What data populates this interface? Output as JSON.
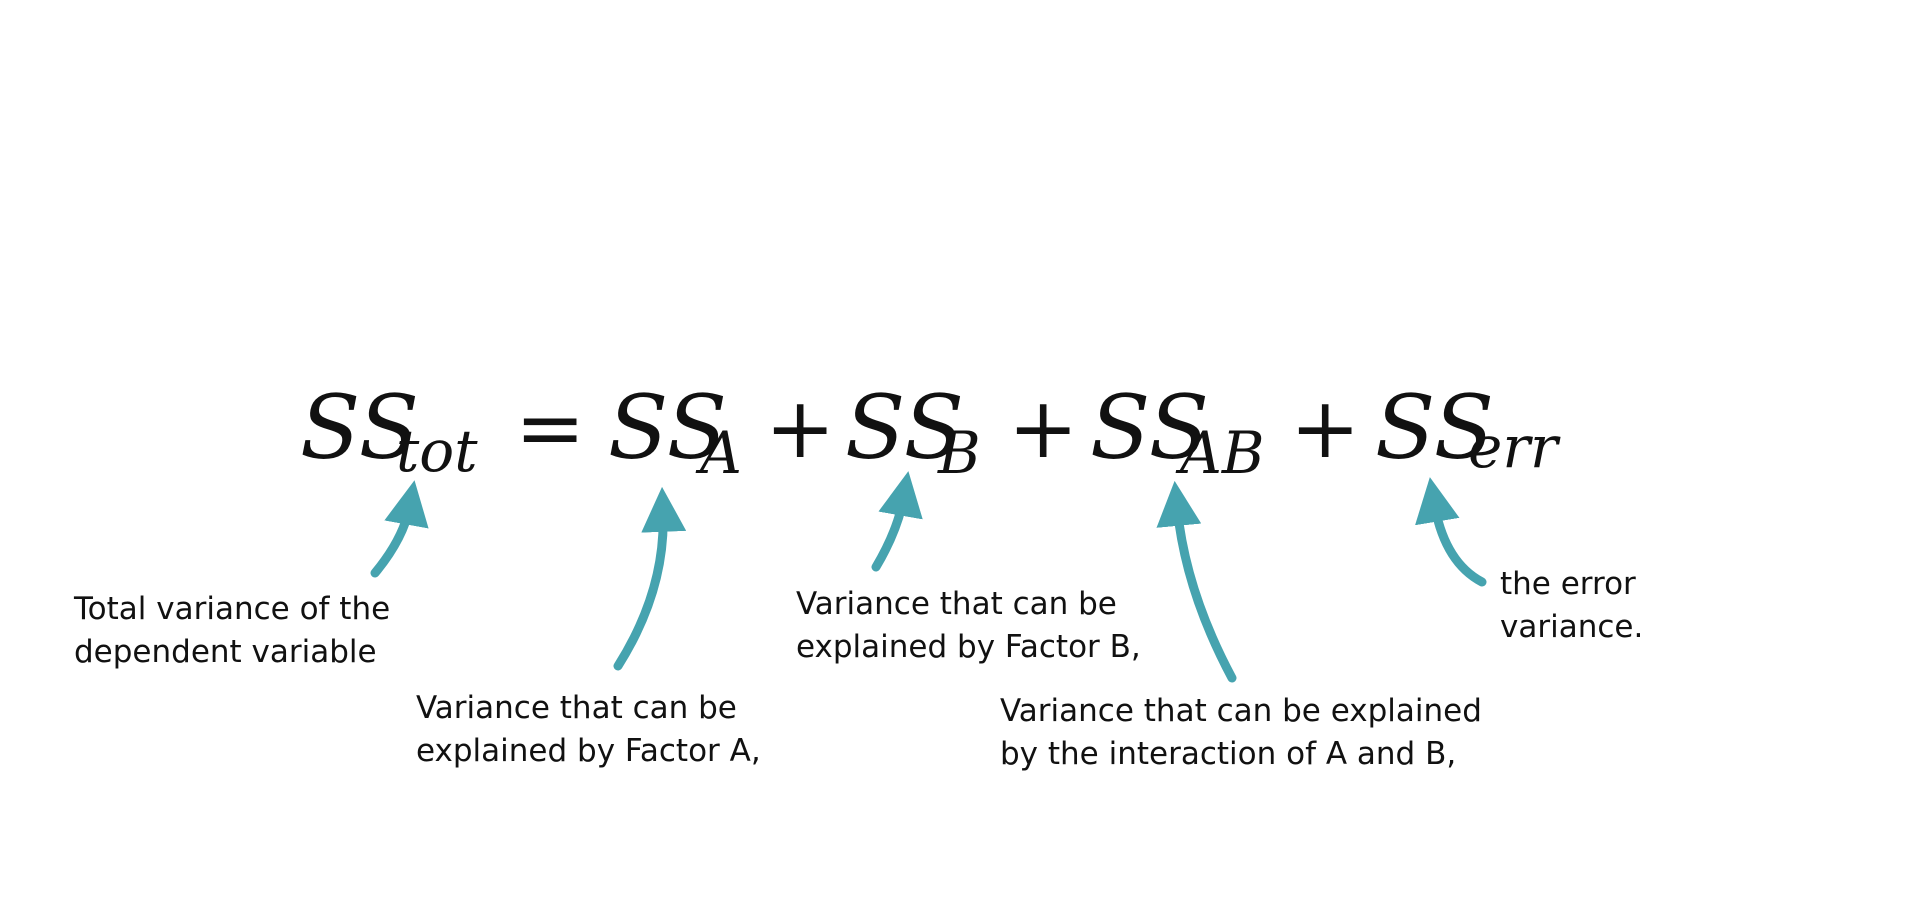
{
  "equation": {
    "terms": [
      {
        "base": "SS",
        "sub": "tot"
      },
      {
        "base": "SS",
        "sub": "A"
      },
      {
        "base": "SS",
        "sub": "B"
      },
      {
        "base": "SS",
        "sub": "AB"
      },
      {
        "base": "SS",
        "sub": "err"
      }
    ],
    "operators": [
      "=",
      "+",
      "+",
      "+"
    ]
  },
  "annotations": [
    {
      "line1": "Total variance of the",
      "line2": "dependent variable"
    },
    {
      "line1": "Variance that can be",
      "line2": "explained by Factor A,"
    },
    {
      "line1": "Variance that can be",
      "line2": "explained by Factor B,"
    },
    {
      "line1": "Variance that can be explained",
      "line2": "by the interaction of A and B,"
    },
    {
      "line1": "the error",
      "line2": "variance."
    }
  ],
  "colors": {
    "arrow": "#46A3AF",
    "text": "#111111",
    "background": "#FFFFFF"
  }
}
